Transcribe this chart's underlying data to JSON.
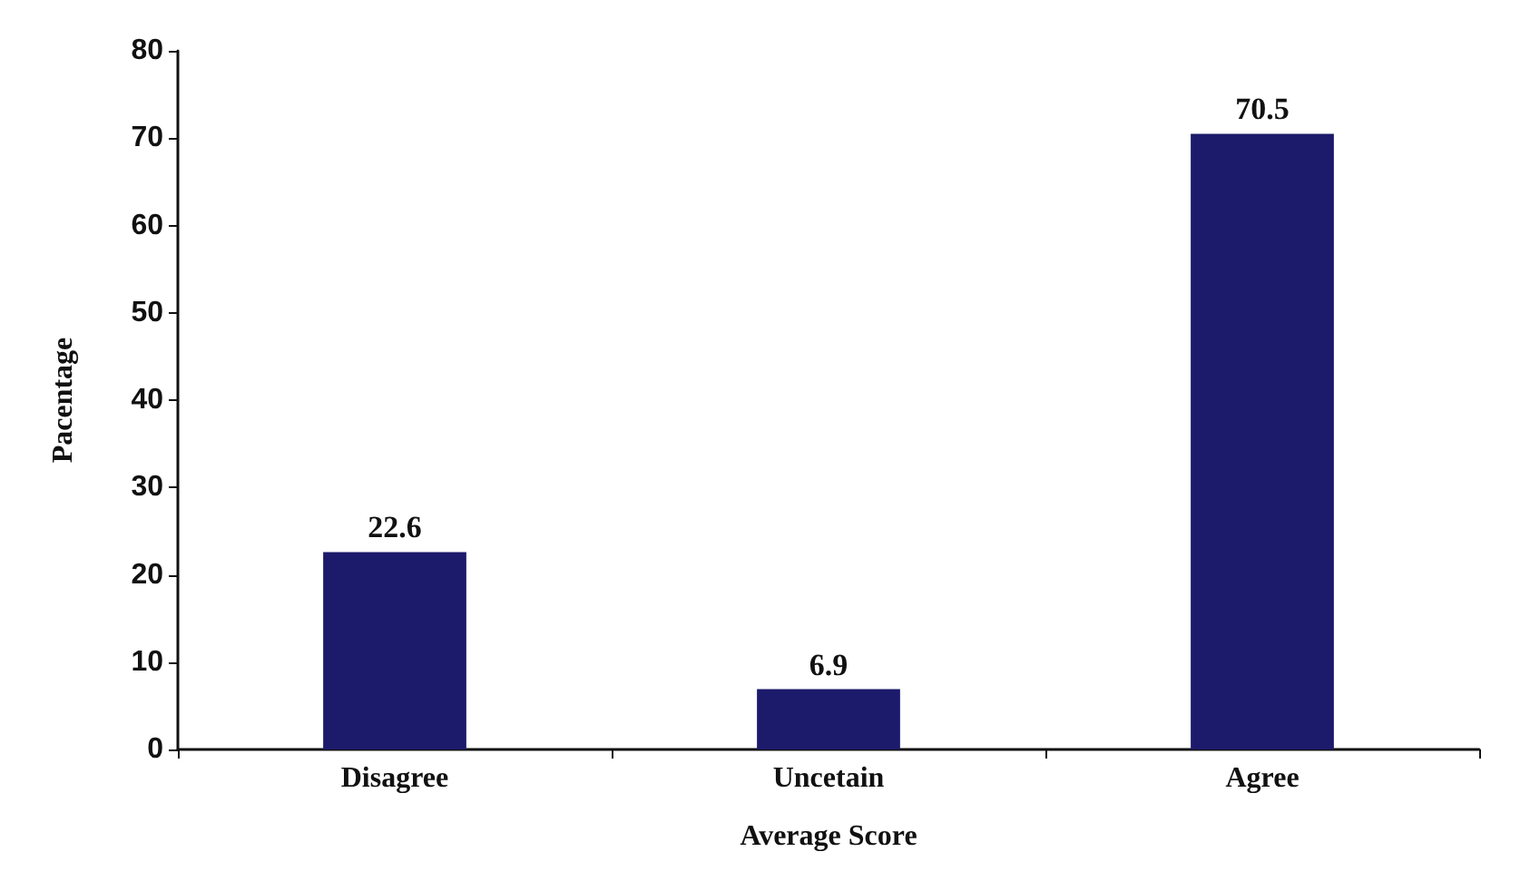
{
  "chart_data": {
    "type": "bar",
    "xlabel": "Average Score",
    "ylabel": "Pacentage",
    "categories": [
      "Disagree",
      "Uncetain",
      "Agree"
    ],
    "values": [
      22.6,
      6.9,
      70.5
    ],
    "color": "#1c1a6a",
    "ylim": [
      0,
      80
    ],
    "yticks": [
      0,
      10,
      20,
      30,
      40,
      50,
      60,
      70,
      80
    ],
    "grid": false,
    "data_labels": true
  }
}
